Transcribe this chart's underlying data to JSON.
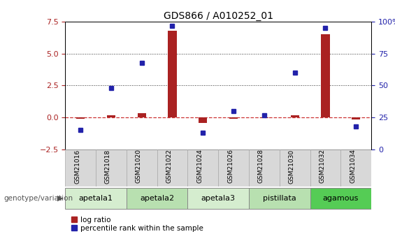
{
  "title": "GDS866 / A010252_01",
  "samples": [
    "GSM21016",
    "GSM21018",
    "GSM21020",
    "GSM21022",
    "GSM21024",
    "GSM21026",
    "GSM21028",
    "GSM21030",
    "GSM21032",
    "GSM21034"
  ],
  "log_ratio": [
    -0.08,
    0.15,
    0.35,
    6.8,
    -0.45,
    -0.12,
    -0.05,
    0.15,
    6.5,
    -0.18
  ],
  "percentile_rank": [
    15,
    48,
    68,
    97,
    13,
    30,
    27,
    60,
    95,
    18
  ],
  "left_ylim": [
    -2.5,
    7.5
  ],
  "right_ylim": [
    0,
    100
  ],
  "left_yticks": [
    -2.5,
    0,
    2.5,
    5,
    7.5
  ],
  "right_yticks": [
    0,
    25,
    50,
    75,
    100
  ],
  "groups_info": [
    {
      "label": "apetala1",
      "start": 0,
      "end": 1,
      "color": "#d5edcf"
    },
    {
      "label": "apetala2",
      "start": 2,
      "end": 3,
      "color": "#b8e0b0"
    },
    {
      "label": "apetala3",
      "start": 4,
      "end": 5,
      "color": "#d5edcf"
    },
    {
      "label": "pistillata",
      "start": 6,
      "end": 7,
      "color": "#b8e0b0"
    },
    {
      "label": "agamous",
      "start": 8,
      "end": 9,
      "color": "#55cc55"
    }
  ],
  "bar_color": "#aa2222",
  "dot_color": "#2222aa",
  "zero_line_color": "#cc3333",
  "dotted_line_color": "#333333",
  "bg_color": "#ffffff",
  "sample_box_color": "#d8d8d8",
  "sample_box_edge": "#aaaaaa",
  "genotype_label": "genotype/variation",
  "legend_lr": "log ratio",
  "legend_pr": "percentile rank within the sample",
  "bar_width": 0.28
}
